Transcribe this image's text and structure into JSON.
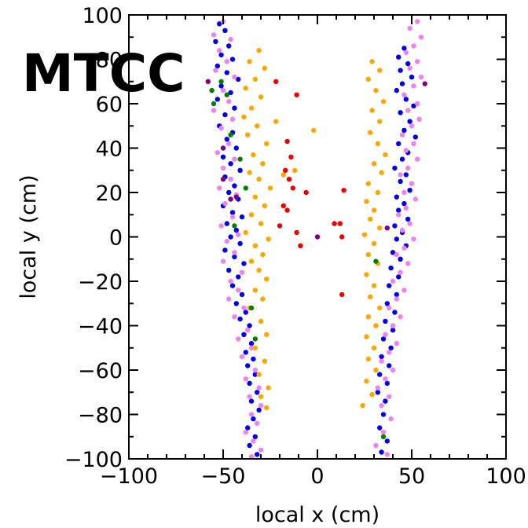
{
  "chart_data": {
    "type": "scatter",
    "title": "MTCC",
    "xlabel": "local x (cm)",
    "ylabel": "local y (cm)",
    "xlim": [
      -100,
      100
    ],
    "ylim": [
      -100,
      100
    ],
    "x_ticks": [
      -100,
      -50,
      0,
      50,
      100
    ],
    "x_tick_labels": [
      "−100",
      "−50",
      "0",
      "50",
      "100"
    ],
    "y_ticks": [
      -100,
      -80,
      -60,
      -40,
      -20,
      0,
      20,
      40,
      60,
      80,
      100
    ],
    "y_tick_labels": [
      "−100",
      "−80",
      "−60",
      "−40",
      "−20",
      "0",
      "20",
      "40",
      "60",
      "80",
      "100"
    ],
    "grid": false,
    "legend": "none",
    "series": [
      {
        "color": "#0000ee",
        "points": [
          [
            -52,
            96
          ],
          [
            -49,
            93
          ],
          [
            -54,
            88
          ],
          [
            -47,
            86
          ],
          [
            -51,
            82
          ],
          [
            -45,
            80
          ],
          [
            -53,
            77
          ],
          [
            -48,
            74
          ],
          [
            -42,
            71
          ],
          [
            -51,
            68
          ],
          [
            -46,
            65
          ],
          [
            -53,
            62
          ],
          [
            -44,
            58
          ],
          [
            -49,
            55
          ],
          [
            -52,
            50
          ],
          [
            -45,
            47
          ],
          [
            -48,
            44
          ],
          [
            -43,
            40
          ],
          [
            -50,
            36
          ],
          [
            -46,
            33
          ],
          [
            -41,
            30
          ],
          [
            -49,
            27
          ],
          [
            -44,
            23
          ],
          [
            -47,
            20
          ],
          [
            -42,
            17
          ],
          [
            -50,
            14
          ],
          [
            -45,
            11
          ],
          [
            -40,
            9
          ],
          [
            -48,
            6
          ],
          [
            -43,
            3
          ],
          [
            -46,
            0
          ],
          [
            -41,
            -3
          ],
          [
            -49,
            -6
          ],
          [
            -44,
            -9
          ],
          [
            -39,
            -12
          ],
          [
            -47,
            -15
          ],
          [
            -42,
            -18
          ],
          [
            -45,
            -22
          ],
          [
            -40,
            -26
          ],
          [
            -43,
            -30
          ],
          [
            -38,
            -34
          ],
          [
            -41,
            -37
          ],
          [
            -36,
            -40
          ],
          [
            -39,
            -44
          ],
          [
            -35,
            -48
          ],
          [
            -38,
            -52
          ],
          [
            -34,
            -55
          ],
          [
            -37,
            -58
          ],
          [
            -33,
            -62
          ],
          [
            -36,
            -66
          ],
          [
            -32,
            -70
          ],
          [
            -35,
            -74
          ],
          [
            -31,
            -78
          ],
          [
            -34,
            -82
          ],
          [
            -37,
            -86
          ],
          [
            -33,
            -90
          ],
          [
            -36,
            -94
          ],
          [
            -32,
            -98
          ],
          [
            46,
            85
          ],
          [
            43,
            81
          ],
          [
            48,
            78
          ],
          [
            44,
            75
          ],
          [
            50,
            72
          ],
          [
            45,
            69
          ],
          [
            42,
            66
          ],
          [
            47,
            62
          ],
          [
            51,
            59
          ],
          [
            44,
            56
          ],
          [
            49,
            52
          ],
          [
            46,
            48
          ],
          [
            52,
            45
          ],
          [
            43,
            42
          ],
          [
            48,
            38
          ],
          [
            45,
            35
          ],
          [
            41,
            31
          ],
          [
            47,
            28
          ],
          [
            44,
            25
          ],
          [
            49,
            21
          ],
          [
            42,
            18
          ],
          [
            46,
            15
          ],
          [
            43,
            12
          ],
          [
            48,
            8
          ],
          [
            41,
            5
          ],
          [
            45,
            2
          ],
          [
            42,
            -1
          ],
          [
            47,
            -4
          ],
          [
            40,
            -7
          ],
          [
            44,
            -10
          ],
          [
            39,
            -14
          ],
          [
            43,
            -18
          ],
          [
            38,
            -22
          ],
          [
            42,
            -26
          ],
          [
            37,
            -30
          ],
          [
            41,
            -34
          ],
          [
            36,
            -38
          ],
          [
            40,
            -42
          ],
          [
            35,
            -46
          ],
          [
            39,
            -50
          ],
          [
            34,
            -54
          ],
          [
            38,
            -58
          ],
          [
            33,
            -62
          ],
          [
            37,
            -66
          ],
          [
            32,
            -70
          ],
          [
            36,
            -74
          ],
          [
            35,
            -80
          ],
          [
            33,
            -86
          ],
          [
            37,
            -92
          ],
          [
            34,
            -97
          ]
        ]
      },
      {
        "color": "#ee82ee",
        "points": [
          [
            -50,
            97
          ],
          [
            -55,
            91
          ],
          [
            -46,
            89
          ],
          [
            -52,
            84
          ],
          [
            -48,
            79
          ],
          [
            -54,
            75
          ],
          [
            -44,
            72
          ],
          [
            -50,
            66
          ],
          [
            -47,
            61
          ],
          [
            -55,
            57
          ],
          [
            -45,
            53
          ],
          [
            -51,
            49
          ],
          [
            -47,
            42
          ],
          [
            -53,
            38
          ],
          [
            -44,
            35
          ],
          [
            -50,
            31
          ],
          [
            -46,
            26
          ],
          [
            -52,
            22
          ],
          [
            -43,
            19
          ],
          [
            -49,
            15
          ],
          [
            -45,
            9
          ],
          [
            -51,
            5
          ],
          [
            -42,
            1
          ],
          [
            -48,
            -2
          ],
          [
            -44,
            -7
          ],
          [
            -50,
            -11
          ],
          [
            -40,
            -16
          ],
          [
            -46,
            -20
          ],
          [
            -42,
            -24
          ],
          [
            -47,
            -28
          ],
          [
            -39,
            -32
          ],
          [
            -44,
            -36
          ],
          [
            -37,
            -42
          ],
          [
            -42,
            -46
          ],
          [
            -35,
            -50
          ],
          [
            -40,
            -54
          ],
          [
            -33,
            -60
          ],
          [
            -38,
            -64
          ],
          [
            -31,
            -68
          ],
          [
            -36,
            -72
          ],
          [
            -30,
            -76
          ],
          [
            -35,
            -80
          ],
          [
            -32,
            -84
          ],
          [
            -38,
            -88
          ],
          [
            -34,
            -92
          ],
          [
            -30,
            -96
          ],
          [
            -35,
            -99
          ],
          [
            53,
            97
          ],
          [
            49,
            94
          ],
          [
            55,
            90
          ],
          [
            51,
            86
          ],
          [
            47,
            83
          ],
          [
            53,
            79
          ],
          [
            49,
            76
          ],
          [
            55,
            72
          ],
          [
            51,
            68
          ],
          [
            46,
            64
          ],
          [
            53,
            60
          ],
          [
            48,
            57
          ],
          [
            54,
            53
          ],
          [
            50,
            50
          ],
          [
            45,
            46
          ],
          [
            51,
            42
          ],
          [
            47,
            39
          ],
          [
            53,
            35
          ],
          [
            48,
            31
          ],
          [
            44,
            28
          ],
          [
            50,
            24
          ],
          [
            46,
            20
          ],
          [
            52,
            17
          ],
          [
            47,
            13
          ],
          [
            43,
            10
          ],
          [
            49,
            6
          ],
          [
            45,
            3
          ],
          [
            51,
            -1
          ],
          [
            46,
            -5
          ],
          [
            42,
            -8
          ],
          [
            48,
            -12
          ],
          [
            44,
            -16
          ],
          [
            40,
            -20
          ],
          [
            46,
            -24
          ],
          [
            42,
            -28
          ],
          [
            38,
            -32
          ],
          [
            44,
            -36
          ],
          [
            40,
            -40
          ],
          [
            36,
            -44
          ],
          [
            42,
            -48
          ],
          [
            38,
            -52
          ],
          [
            34,
            -56
          ],
          [
            40,
            -60
          ],
          [
            36,
            -64
          ],
          [
            32,
            -68
          ],
          [
            38,
            -72
          ],
          [
            34,
            -76
          ],
          [
            39,
            -82
          ],
          [
            35,
            -88
          ],
          [
            31,
            -94
          ],
          [
            37,
            -98
          ]
        ]
      },
      {
        "color": "#ffa500",
        "points": [
          [
            -31,
            84
          ],
          [
            -36,
            79
          ],
          [
            -28,
            76
          ],
          [
            -33,
            71
          ],
          [
            -38,
            67
          ],
          [
            -30,
            63
          ],
          [
            -35,
            58
          ],
          [
            -39,
            54
          ],
          [
            -32,
            50
          ],
          [
            -37,
            46
          ],
          [
            -27,
            42
          ],
          [
            -34,
            37
          ],
          [
            -29,
            33
          ],
          [
            -36,
            29
          ],
          [
            -31,
            26
          ],
          [
            -25,
            22
          ],
          [
            -33,
            18
          ],
          [
            -28,
            14
          ],
          [
            -35,
            10
          ],
          [
            -30,
            6
          ],
          [
            -38,
            2
          ],
          [
            -26,
            -1
          ],
          [
            -33,
            -4
          ],
          [
            -29,
            -8
          ],
          [
            -35,
            -11
          ],
          [
            -31,
            -15
          ],
          [
            -27,
            -19
          ],
          [
            -33,
            -24
          ],
          [
            -29,
            -28
          ],
          [
            -36,
            -32
          ],
          [
            -30,
            -38
          ],
          [
            -27,
            -44
          ],
          [
            -33,
            -50
          ],
          [
            -28,
            -56
          ],
          [
            -31,
            -62
          ],
          [
            -26,
            -68
          ],
          [
            -30,
            -72
          ],
          [
            -27,
            -77
          ],
          [
            -2,
            48
          ],
          [
            -22,
            52
          ],
          [
            -18,
            28
          ],
          [
            -12,
            30
          ],
          [
            29,
            79
          ],
          [
            33,
            75
          ],
          [
            27,
            71
          ],
          [
            31,
            66
          ],
          [
            35,
            61
          ],
          [
            29,
            57
          ],
          [
            33,
            52
          ],
          [
            28,
            47
          ],
          [
            32,
            42
          ],
          [
            36,
            37
          ],
          [
            30,
            33
          ],
          [
            34,
            29
          ],
          [
            27,
            24
          ],
          [
            32,
            20
          ],
          [
            26,
            16
          ],
          [
            30,
            12
          ],
          [
            28,
            8
          ],
          [
            33,
            4
          ],
          [
            25,
            1
          ],
          [
            30,
            -3
          ],
          [
            27,
            -8
          ],
          [
            32,
            -12
          ],
          [
            26,
            -17
          ],
          [
            30,
            -22
          ],
          [
            28,
            -27
          ],
          [
            33,
            -32
          ],
          [
            27,
            -36
          ],
          [
            31,
            -40
          ],
          [
            26,
            -45
          ],
          [
            30,
            -50
          ],
          [
            27,
            -55
          ],
          [
            31,
            -60
          ],
          [
            26,
            -65
          ],
          [
            29,
            -71
          ],
          [
            24,
            -76
          ]
        ]
      },
      {
        "color": "#ee0000",
        "points": [
          [
            -22,
            70
          ],
          [
            -11,
            64
          ],
          [
            -16,
            43
          ],
          [
            -14,
            36
          ],
          [
            -17,
            30
          ],
          [
            -15,
            26
          ],
          [
            -13,
            22
          ],
          [
            -6,
            20
          ],
          [
            -18,
            14
          ],
          [
            -16,
            12
          ],
          [
            -20,
            5
          ],
          [
            -11,
            2
          ],
          [
            -9,
            -4
          ],
          [
            9,
            6
          ],
          [
            12,
            6
          ],
          [
            13,
            0
          ],
          [
            14,
            21
          ],
          [
            13,
            -26
          ]
        ]
      },
      {
        "color": "#008000",
        "points": [
          [
            -56,
            66
          ],
          [
            -55,
            60
          ],
          [
            -48,
            64
          ],
          [
            -51,
            70
          ],
          [
            -46,
            46
          ],
          [
            -41,
            35
          ],
          [
            -38,
            22
          ],
          [
            -35,
            -32
          ],
          [
            -33,
            -46
          ],
          [
            31,
            -11
          ],
          [
            -44,
            5
          ],
          [
            35,
            -90
          ]
        ]
      },
      {
        "color": "#800080",
        "points": [
          [
            -58,
            70
          ],
          [
            -50,
            40
          ],
          [
            -50,
            26
          ],
          [
            -46,
            17
          ],
          [
            0,
            0
          ],
          [
            37,
            4
          ],
          [
            57,
            69
          ],
          [
            -43,
            18
          ]
        ]
      }
    ]
  }
}
